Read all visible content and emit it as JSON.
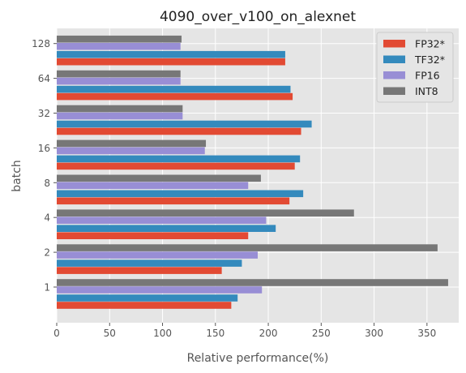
{
  "chart_data": {
    "type": "bar",
    "orientation": "horizontal",
    "title": "4090_over_v100_on_alexnet",
    "xlabel": "Relative performance(%)",
    "ylabel": "batch",
    "xlim": [
      0,
      380
    ],
    "xticks": [
      "0",
      "50",
      "100",
      "150",
      "200",
      "250",
      "300",
      "350"
    ],
    "grid": true,
    "legend_position": "top-right",
    "categories": [
      "1",
      "2",
      "4",
      "8",
      "16",
      "32",
      "64",
      "128"
    ],
    "series": [
      {
        "name": "FP32*",
        "color": "#E24A33",
        "values": [
          165,
          156,
          181,
          220,
          225,
          231,
          223,
          216
        ]
      },
      {
        "name": "TF32*",
        "color": "#348ABD",
        "values": [
          171,
          175,
          207,
          233,
          230,
          241,
          221,
          216
        ]
      },
      {
        "name": "FP16",
        "color": "#988ED5",
        "values": [
          194,
          190,
          198,
          181,
          140,
          119,
          117,
          117
        ]
      },
      {
        "name": "INT8",
        "color": "#777777",
        "values": [
          370,
          360,
          281,
          193,
          141,
          119,
          117,
          118
        ]
      }
    ]
  }
}
